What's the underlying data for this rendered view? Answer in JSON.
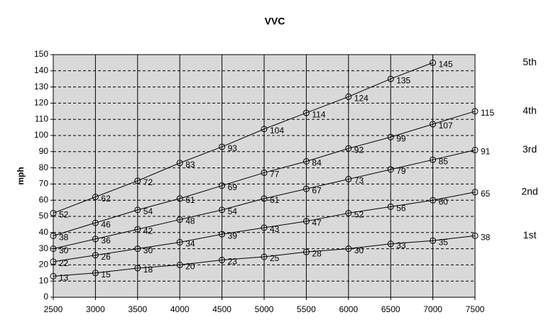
{
  "chart_data": {
    "type": "line",
    "title": "VVC",
    "y_label": "mph",
    "x": [
      2500,
      3000,
      3500,
      4000,
      4500,
      5000,
      5500,
      6000,
      6500,
      7000,
      7500
    ],
    "series": [
      {
        "name": "1st",
        "color": "#000000",
        "values": [
          13,
          15,
          18,
          20,
          23,
          25,
          28,
          30,
          33,
          35,
          38
        ]
      },
      {
        "name": "2nd",
        "color": "#000000",
        "values": [
          22,
          26,
          30,
          34,
          39,
          43,
          47,
          52,
          56,
          60,
          65
        ]
      },
      {
        "name": "3rd",
        "color": "#000000",
        "values": [
          30,
          36,
          42,
          48,
          54,
          61,
          67,
          73,
          79,
          85,
          91
        ]
      },
      {
        "name": "4th",
        "color": "#000000",
        "values": [
          38,
          46,
          54,
          61,
          69,
          77,
          84,
          92,
          99,
          107,
          115
        ]
      },
      {
        "name": "5th",
        "color": "#000000",
        "values": [
          52,
          62,
          72,
          83,
          93,
          104,
          114,
          124,
          135,
          145,
          null
        ]
      }
    ],
    "xlim": [
      2500,
      7500
    ],
    "xticks": [
      2500,
      3000,
      3500,
      4000,
      4500,
      5000,
      5500,
      6000,
      6500,
      7000,
      7500
    ],
    "ylim": [
      0,
      150
    ],
    "yticks": [
      0,
      10,
      20,
      30,
      40,
      50,
      60,
      70,
      80,
      90,
      100,
      110,
      120,
      130,
      140,
      150
    ],
    "grid": true
  }
}
